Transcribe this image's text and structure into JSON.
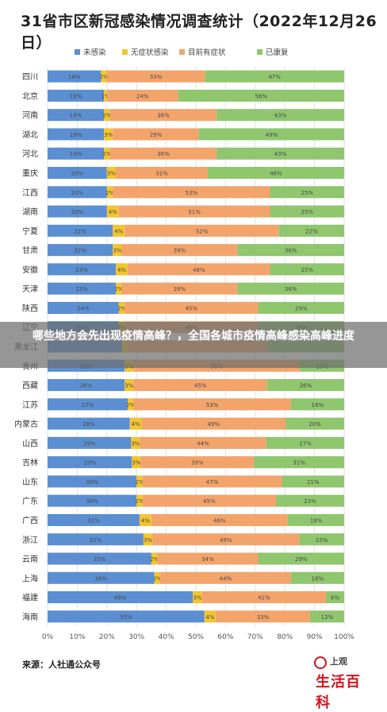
{
  "title": "31省市区新冠感染情况调查统计（2022年12月26日）",
  "overlay_text": "哪些地方会先出现疫情高峰？，全国各城市疫情高峰感染高峰进度",
  "source": "来源：人社通公众号",
  "logo": {
    "small": "上观",
    "big": "生活百科"
  },
  "colors": {
    "uninfected": "#5b8fd1",
    "asymptomatic": "#f2c531",
    "symptomatic": "#f3a46b",
    "recovered": "#8fc66e"
  },
  "chart_data": {
    "type": "bar",
    "orientation": "horizontal",
    "stacked": true,
    "percent_stacked": true,
    "legend_position": "top",
    "grid": true,
    "xlim": [
      0,
      100
    ],
    "xticks": [
      "0%",
      "10%",
      "20%",
      "30%",
      "40%",
      "50%",
      "60%",
      "70%",
      "80%",
      "90%",
      "100%"
    ],
    "categories": [
      "四川",
      "北京",
      "河南",
      "湖北",
      "河北",
      "重庆",
      "江西",
      "湖南",
      "宁夏",
      "甘肃",
      "安徽",
      "天津",
      "陕西",
      "辽宁",
      "黑龙江",
      "贵州",
      "西藏",
      "江苏",
      "内蒙古",
      "山西",
      "吉林",
      "山东",
      "广东",
      "广西",
      "浙江",
      "云南",
      "上海",
      "福建",
      "海南"
    ],
    "series": [
      {
        "name": "未感染",
        "values": [
          18,
          19,
          19,
          19,
          19,
          20,
          20,
          20,
          22,
          22,
          23,
          23,
          24,
          24,
          25,
          26,
          26,
          27,
          28,
          29,
          29,
          30,
          30,
          31,
          32,
          35,
          36,
          48,
          55
        ]
      },
      {
        "name": "无症状感染",
        "values": [
          2,
          1,
          2,
          3,
          2,
          3,
          2,
          4,
          4,
          3,
          4,
          2,
          2,
          2,
          2,
          3,
          3,
          2,
          4,
          3,
          3,
          2,
          2,
          4,
          3,
          2,
          2,
          3,
          4
        ]
      },
      {
        "name": "目前有症状",
        "values": [
          33,
          24,
          36,
          29,
          36,
          31,
          53,
          51,
          52,
          39,
          48,
          39,
          45,
          45,
          47,
          56,
          45,
          53,
          49,
          44,
          39,
          47,
          45,
          46,
          49,
          34,
          44,
          41,
          33
        ]
      },
      {
        "name": "已康复",
        "values": [
          47,
          56,
          43,
          49,
          43,
          46,
          25,
          25,
          22,
          36,
          25,
          36,
          29,
          29,
          26,
          15,
          26,
          18,
          20,
          27,
          31,
          21,
          23,
          19,
          15,
          29,
          18,
          6,
          12
        ]
      }
    ],
    "data_labels": [
      [
        "18%",
        "2%",
        "33%",
        "47%"
      ],
      [
        "19%",
        "1%",
        "24%",
        "56%"
      ],
      [
        "19%",
        "2%",
        "36%",
        "43%"
      ],
      [
        "19%",
        "3%",
        "29%",
        "49%"
      ],
      [
        "19%",
        "2%",
        "36%",
        "43%"
      ],
      [
        "20%",
        "3%",
        "31%",
        "46%"
      ],
      [
        "20%",
        "2%",
        "53%",
        "25%"
      ],
      [
        "20%",
        "4%",
        "51%",
        "25%"
      ],
      [
        "22%",
        "4%",
        "52%",
        "22%"
      ],
      [
        "22%",
        "3%",
        "39%",
        "36%"
      ],
      [
        "23%",
        "4%",
        "48%",
        "25%"
      ],
      [
        "23%",
        "2%",
        "39%",
        "36%"
      ],
      [
        "24%",
        "2%",
        "45%",
        "29%"
      ],
      [
        "24%",
        "2%",
        "45%",
        "29%"
      ],
      [
        "",
        "",
        "",
        ""
      ],
      [
        "26%",
        "3%",
        "56%",
        "15%"
      ],
      [
        "26%",
        "3%",
        "45%",
        "26%"
      ],
      [
        "27%",
        "2%",
        "53%",
        "18%"
      ],
      [
        "28%",
        "4%",
        "49%",
        "20%"
      ],
      [
        "29%",
        "3%",
        "44%",
        "27%"
      ],
      [
        "29%",
        "3%",
        "39%",
        "31%"
      ],
      [
        "30%",
        "2%",
        "47%",
        "21%"
      ],
      [
        "30%",
        "2%",
        "45%",
        "23%"
      ],
      [
        "31%",
        "4%",
        "46%",
        "19%"
      ],
      [
        "32%",
        "3%",
        "49%",
        "15%"
      ],
      [
        "35%",
        "2%",
        "34%",
        "29%"
      ],
      [
        "36%",
        "2%",
        "44%",
        "18%"
      ],
      [
        "48%",
        "3%",
        "41%",
        "6%"
      ],
      [
        "55%",
        "4%",
        "33%",
        "12%"
      ]
    ]
  }
}
